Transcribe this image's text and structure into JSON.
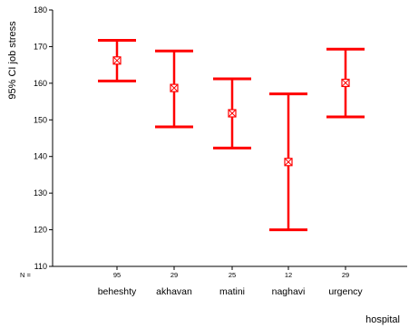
{
  "chart_data": {
    "type": "errorbar",
    "ylabel": "95% CI job stress",
    "xlabel": "hospital",
    "n_prefix": "N =",
    "ylim": [
      110,
      180
    ],
    "yticks": [
      110,
      120,
      130,
      140,
      150,
      160,
      170,
      180
    ],
    "categories": [
      "beheshty",
      "akhavan",
      "matini",
      "naghavi",
      "urgency"
    ],
    "n": [
      "95",
      "29",
      "25",
      "12",
      "29"
    ],
    "mean": [
      166.2,
      158.7,
      151.8,
      138.5,
      160.1
    ],
    "lower": [
      160.6,
      148.1,
      142.3,
      120.0,
      150.8
    ],
    "upper": [
      171.7,
      168.8,
      161.2,
      157.1,
      169.3
    ],
    "color": "#ff0000"
  }
}
